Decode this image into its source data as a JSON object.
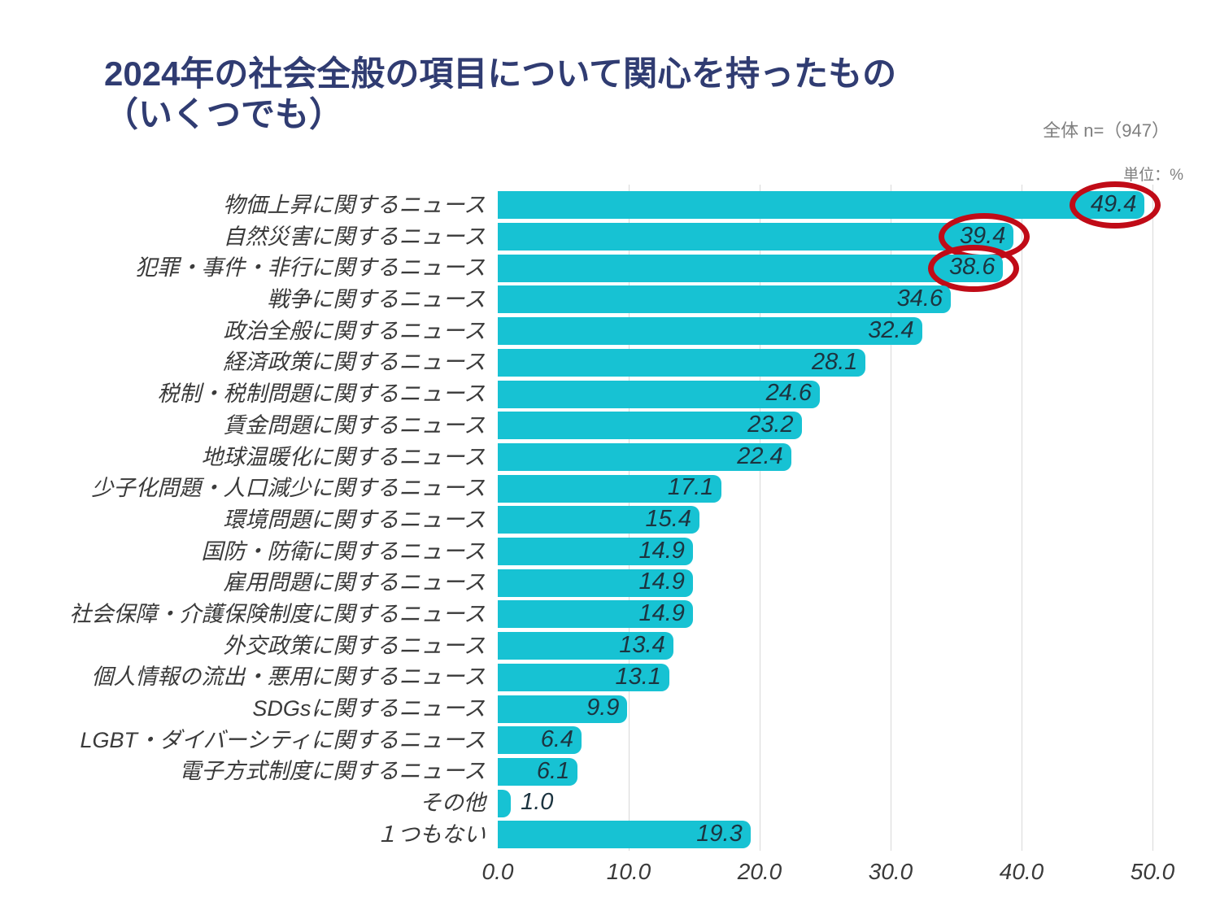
{
  "page": {
    "title": "2024年の社会全般の項目について関心を持ったもの\n（いくつでも）",
    "sample_label": "全体 n=（947）",
    "unit_label": "単位：%"
  },
  "colors": {
    "bar": "#17C2D3",
    "title_text": "#303C72",
    "note_text": "#7F7F7F",
    "category_text": "#3A3A3A",
    "value_text": "#1C3440",
    "gridline": "#D9D9D9",
    "highlight_circle": "#C00B17"
  },
  "chart_data": {
    "type": "bar",
    "orientation": "horizontal",
    "title": "2024年の社会全般の項目について関心を持ったもの（いくつでも）",
    "unit": "%",
    "xlim": [
      0,
      50
    ],
    "x_ticks": [
      "0.0",
      "10.0",
      "20.0",
      "30.0",
      "40.0",
      "50.0"
    ],
    "grid": true,
    "categories": [
      "物価上昇に関するニュース",
      "自然災害に関するニュース",
      "犯罪・事件・非行に関するニュース",
      "戦争に関するニュース",
      "政治全般に関するニュース",
      "経済政策に関するニュース",
      "税制・税制問題に関するニュース",
      "賃金問題に関するニュース",
      "地球温暖化に関するニュース",
      "少子化問題・人口減少に関するニュース",
      "環境問題に関するニュース",
      "国防・防衛に関するニュース",
      "雇用問題に関するニュース",
      "社会保障・介護保険制度に関するニュース",
      "外交政策に関するニュース",
      "個人情報の流出・悪用に関するニュース",
      "SDGsに関するニュース",
      "LGBT・ダイバーシティに関するニュース",
      "電子方式制度に関するニュース",
      "その他",
      "１つもない"
    ],
    "values": [
      49.4,
      39.4,
      38.6,
      34.6,
      32.4,
      28.1,
      24.6,
      23.2,
      22.4,
      17.1,
      15.4,
      14.9,
      14.9,
      14.9,
      13.4,
      13.1,
      9.9,
      6.4,
      6.1,
      1.0,
      19.3
    ],
    "circled": [
      true,
      true,
      true,
      false,
      false,
      false,
      false,
      false,
      false,
      false,
      false,
      false,
      false,
      false,
      false,
      false,
      false,
      false,
      false,
      false,
      false
    ],
    "circled_values": [
      49.4,
      39.4,
      38.6
    ]
  }
}
